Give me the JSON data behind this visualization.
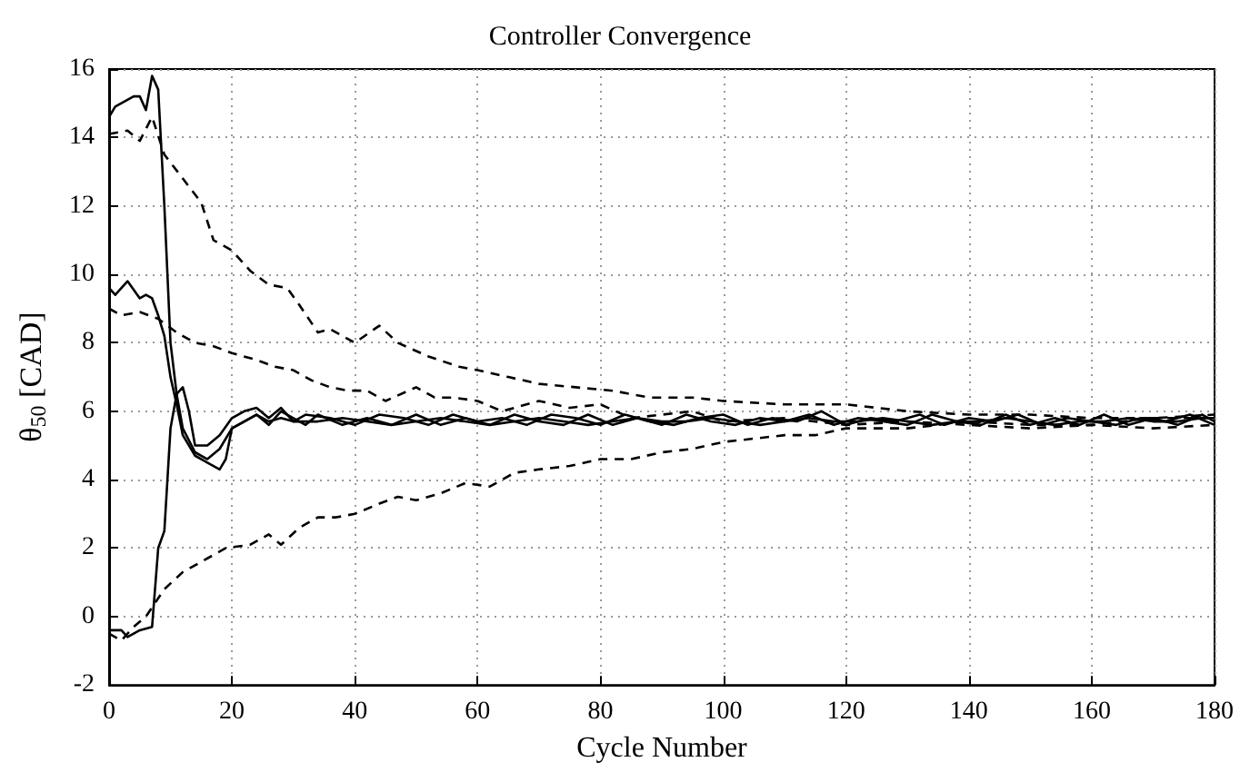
{
  "chart_data": {
    "type": "line",
    "title": "Controller Convergence",
    "xlabel": "Cycle Number",
    "ylabel": "θ$_{50}$ [CAD]",
    "xlim": [
      0,
      180
    ],
    "xticks": [
      0,
      20,
      40,
      60,
      80,
      100,
      120,
      140,
      160,
      180
    ],
    "ylim": [
      -2,
      16
    ],
    "yticks": [
      -2,
      0,
      2,
      4,
      6,
      8,
      10,
      12,
      14,
      16
    ],
    "grid": true,
    "marker": "none",
    "series": [
      {
        "color": "#000000",
        "line_style": "solid",
        "x": [
          0,
          1,
          2,
          4,
          5,
          6,
          7,
          8,
          9,
          10,
          11,
          12,
          14,
          16,
          18,
          20,
          22,
          24,
          26,
          28,
          30,
          34,
          38,
          42,
          46,
          50,
          54,
          58,
          62,
          66,
          70,
          74,
          78,
          82,
          86,
          90,
          94,
          98,
          102,
          106,
          110,
          114,
          118,
          122,
          126,
          130,
          134,
          138,
          142,
          146,
          150,
          154,
          158,
          162,
          166,
          170,
          174,
          178,
          180
        ],
        "values": [
          14.6,
          14.9,
          15.0,
          15.2,
          15.2,
          14.8,
          15.8,
          15.4,
          12.0,
          8.0,
          6.5,
          5.5,
          4.8,
          4.6,
          4.9,
          5.5,
          5.7,
          5.9,
          5.7,
          5.8,
          5.7,
          5.7,
          5.8,
          5.7,
          5.6,
          5.7,
          5.8,
          5.7,
          5.6,
          5.7,
          5.8,
          5.7,
          5.6,
          5.7,
          5.8,
          5.7,
          5.7,
          5.8,
          5.7,
          5.6,
          5.7,
          5.8,
          5.7,
          5.7,
          5.8,
          5.7,
          5.6,
          5.7,
          5.7,
          5.8,
          5.7,
          5.6,
          5.7,
          5.7,
          5.8,
          5.7,
          5.7,
          5.8,
          5.8
        ]
      },
      {
        "color": "#000000",
        "line_style": "solid",
        "x": [
          0,
          1,
          3,
          5,
          6,
          7,
          8,
          9,
          10,
          11,
          12,
          14,
          16,
          18,
          19,
          20,
          22,
          24,
          26,
          28,
          30,
          32,
          34,
          38,
          42,
          46,
          50,
          54,
          58,
          62,
          66,
          70,
          74,
          78,
          82,
          86,
          90,
          94,
          98,
          102,
          106,
          110,
          114,
          118,
          122,
          126,
          130,
          134,
          138,
          142,
          146,
          150,
          154,
          158,
          162,
          166,
          170,
          174,
          178,
          180
        ],
        "values": [
          9.6,
          9.4,
          9.8,
          9.3,
          9.4,
          9.3,
          8.8,
          8.2,
          7.0,
          6.2,
          5.3,
          4.7,
          4.5,
          4.3,
          4.6,
          5.5,
          5.7,
          5.9,
          5.6,
          6.0,
          5.8,
          5.6,
          5.9,
          5.6,
          5.8,
          5.6,
          5.9,
          5.6,
          5.8,
          5.6,
          5.9,
          5.7,
          5.6,
          5.9,
          5.6,
          5.8,
          5.6,
          5.9,
          5.7,
          5.6,
          5.8,
          5.7,
          5.9,
          5.6,
          5.8,
          5.7,
          5.6,
          5.9,
          5.7,
          5.6,
          5.9,
          5.6,
          5.8,
          5.6,
          5.9,
          5.6,
          5.8,
          5.6,
          5.9,
          5.7
        ]
      },
      {
        "color": "#000000",
        "line_style": "solid",
        "x": [
          0,
          2,
          3,
          5,
          7,
          8,
          9,
          10,
          11,
          12,
          13,
          14,
          16,
          18,
          20,
          22,
          24,
          26,
          28,
          30,
          32,
          36,
          40,
          44,
          48,
          52,
          56,
          60,
          64,
          68,
          72,
          76,
          80,
          84,
          88,
          92,
          96,
          100,
          104,
          108,
          112,
          116,
          120,
          124,
          128,
          132,
          136,
          140,
          144,
          148,
          152,
          156,
          160,
          164,
          168,
          172,
          176,
          180
        ],
        "values": [
          -0.4,
          -0.4,
          -0.6,
          -0.4,
          -0.3,
          2.0,
          2.5,
          5.5,
          6.5,
          6.7,
          6.0,
          5.0,
          5.0,
          5.3,
          5.8,
          6.0,
          6.1,
          5.8,
          6.1,
          5.7,
          5.9,
          5.8,
          5.6,
          5.9,
          5.8,
          5.6,
          5.9,
          5.7,
          5.8,
          5.6,
          5.9,
          5.8,
          5.6,
          5.9,
          5.7,
          5.6,
          5.8,
          5.9,
          5.6,
          5.8,
          5.7,
          6.0,
          5.6,
          5.8,
          5.7,
          5.9,
          5.6,
          5.8,
          5.7,
          5.9,
          5.6,
          5.8,
          5.7,
          5.6,
          5.8,
          5.7,
          5.9,
          5.6
        ]
      },
      {
        "color": "#000000",
        "line_style": "dashed",
        "x": [
          0,
          3,
          5,
          7,
          9,
          12,
          15,
          17,
          20,
          23,
          26,
          29,
          31,
          34,
          36,
          38,
          40,
          44,
          47,
          52,
          57,
          60,
          65,
          70,
          76,
          82,
          88,
          95,
          100,
          110,
          120,
          130,
          140,
          150,
          160,
          170,
          180
        ],
        "values": [
          14.1,
          14.2,
          13.9,
          14.6,
          13.5,
          12.8,
          12.1,
          11.0,
          10.7,
          10.1,
          9.7,
          9.6,
          9.1,
          8.3,
          8.4,
          8.2,
          8.0,
          8.5,
          8.0,
          7.6,
          7.3,
          7.2,
          7.0,
          6.8,
          6.7,
          6.6,
          6.4,
          6.4,
          6.3,
          6.2,
          6.2,
          6.0,
          5.9,
          5.9,
          5.8,
          5.8,
          5.9
        ]
      },
      {
        "color": "#000000",
        "line_style": "dashed",
        "x": [
          0,
          2,
          5,
          8,
          11,
          14,
          17,
          20,
          24,
          27,
          30,
          33,
          36,
          39,
          42,
          45,
          50,
          53,
          56,
          60,
          64,
          70,
          75,
          80,
          85,
          90,
          95,
          100,
          110,
          120,
          130,
          140,
          150,
          160,
          170,
          180
        ],
        "values": [
          9.0,
          8.8,
          8.9,
          8.7,
          8.3,
          8.0,
          7.9,
          7.7,
          7.5,
          7.3,
          7.2,
          6.9,
          6.7,
          6.6,
          6.6,
          6.3,
          6.7,
          6.4,
          6.4,
          6.3,
          6.0,
          6.3,
          6.1,
          6.2,
          5.8,
          5.9,
          6.0,
          5.7,
          5.8,
          5.6,
          5.7,
          5.6,
          5.5,
          5.6,
          5.5,
          5.6
        ]
      },
      {
        "color": "#000000",
        "line_style": "dashed",
        "x": [
          0,
          2,
          4,
          6,
          9,
          12,
          15,
          19,
          23,
          26,
          28,
          31,
          34,
          37,
          40,
          44,
          47,
          50,
          54,
          58,
          62,
          66,
          70,
          75,
          80,
          85,
          90,
          95,
          100,
          105,
          110,
          115,
          120,
          130,
          140,
          150,
          160,
          170,
          180
        ],
        "values": [
          -0.5,
          -0.7,
          -0.3,
          0.0,
          0.8,
          1.3,
          1.6,
          2.0,
          2.1,
          2.4,
          2.1,
          2.6,
          2.9,
          2.9,
          3.0,
          3.3,
          3.5,
          3.4,
          3.6,
          3.9,
          3.8,
          4.2,
          4.3,
          4.4,
          4.6,
          4.6,
          4.8,
          4.9,
          5.1,
          5.2,
          5.3,
          5.3,
          5.5,
          5.5,
          5.7,
          5.6,
          5.6,
          5.8,
          5.8
        ]
      }
    ]
  }
}
